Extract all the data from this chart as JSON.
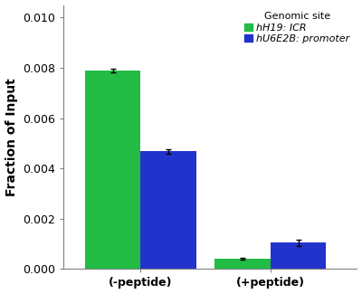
{
  "groups": [
    "(-peptide)",
    "(+peptide)"
  ],
  "series": [
    {
      "label": "hH19: ICR",
      "color": "#22bb44",
      "values": [
        0.0079,
        0.00042
      ],
      "errors": [
        8e-05,
        4e-05
      ]
    },
    {
      "label": "hU6E2B: promoter",
      "color": "#2233cc",
      "values": [
        0.00468,
        0.00105
      ],
      "errors": [
        0.0001,
        0.00013
      ]
    }
  ],
  "ylabel": "Fraction of Input",
  "ylim": [
    0,
    0.0105
  ],
  "yticks": [
    0.0,
    0.002,
    0.004,
    0.006,
    0.008,
    0.01
  ],
  "legend_title": "Genomic site",
  "bar_width": 0.18,
  "background_color": "#ffffff",
  "title_fontsize": 8,
  "axis_fontsize": 10,
  "tick_fontsize": 9,
  "legend_fontsize": 8,
  "group_positions": [
    0.3,
    0.72
  ]
}
